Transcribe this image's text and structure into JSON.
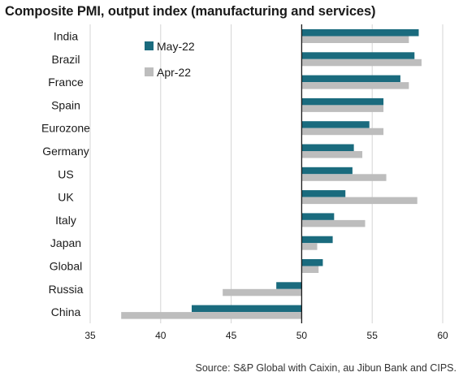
{
  "chart_data": {
    "type": "bar",
    "orientation": "horizontal",
    "title": "Composite PMI, output index (manufacturing and services)",
    "categories": [
      "India",
      "Brazil",
      "France",
      "Spain",
      "Eurozone",
      "Germany",
      "US",
      "UK",
      "Italy",
      "Japan",
      "Global",
      "Russia",
      "China"
    ],
    "series": [
      {
        "name": "May-22",
        "color": "#1a6b7e",
        "values": [
          58.3,
          58.0,
          57.0,
          55.8,
          54.8,
          53.7,
          53.6,
          53.1,
          52.3,
          52.2,
          51.5,
          48.2,
          42.2
        ]
      },
      {
        "name": "Apr-22",
        "color": "#bdbdbd",
        "values": [
          57.6,
          58.5,
          57.6,
          55.8,
          55.8,
          54.3,
          56.0,
          58.2,
          54.5,
          51.1,
          51.2,
          44.4,
          37.2
        ]
      }
    ],
    "xlim": [
      35,
      60
    ],
    "xticks": [
      35,
      40,
      45,
      50,
      55,
      60
    ],
    "baseline": 50,
    "grid": "vertical",
    "legend_position": "top-left"
  },
  "source": "Source: S&P Global with Caixin, au Jibun Bank and CIPS."
}
